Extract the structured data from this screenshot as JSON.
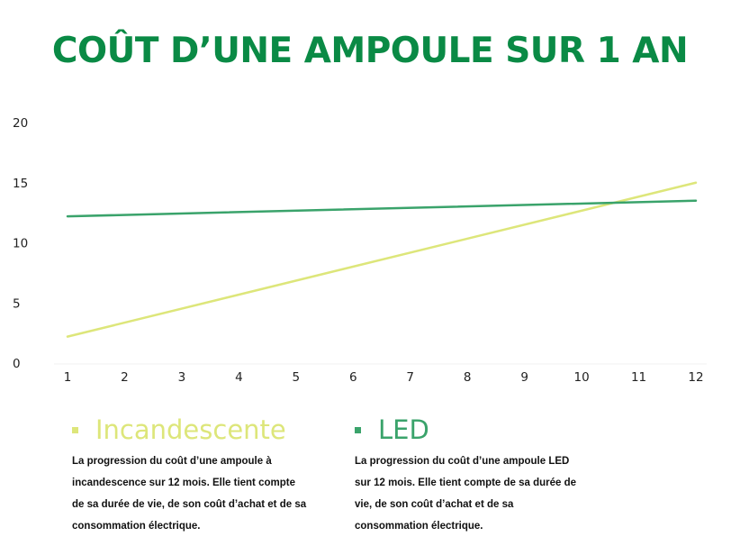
{
  "title": "COÛT D’UNE AMPOULE SUR 1 AN",
  "colors": {
    "title": "#0a8a45",
    "incandescent": "#dde67a",
    "led": "#3aa36b",
    "axis": "#f0f0f0",
    "text": "#222222"
  },
  "legend": [
    {
      "name": "Incandescente",
      "description": "La progression du coût d’une ampoule à incandescence sur 12 mois. Elle tient compte de sa durée de vie, de son coût d’achat et de sa consommation électrique."
    },
    {
      "name": "LED",
      "description": "La progression du coût d’une ampoule LED sur 12 mois. Elle tient compte de sa durée de vie, de son coût d’achat et de sa consommation électrique."
    }
  ],
  "chart_data": {
    "type": "line",
    "title": "COÛT D’UNE AMPOULE SUR 1 AN",
    "xlabel": "",
    "ylabel": "",
    "x": [
      1,
      12
    ],
    "xticks": [
      "1",
      "2",
      "3",
      "4",
      "5",
      "6",
      "7",
      "8",
      "9",
      "10",
      "11",
      "12"
    ],
    "yticks": [
      "0",
      "5",
      "10",
      "15",
      "20"
    ],
    "ylim": [
      0,
      20
    ],
    "xlim": [
      1,
      12
    ],
    "grid": false,
    "legend_position": "bottom",
    "series": [
      {
        "name": "Incandescente",
        "color": "#dde67a",
        "x": [
          1,
          12
        ],
        "values": [
          2.2,
          15.0
        ]
      },
      {
        "name": "LED",
        "color": "#3aa36b",
        "x": [
          1,
          12
        ],
        "values": [
          12.2,
          13.5
        ]
      }
    ]
  }
}
